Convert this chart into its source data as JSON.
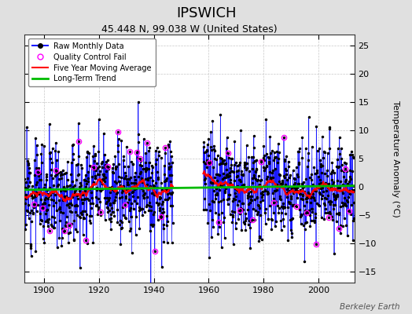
{
  "title": "IPSWICH",
  "subtitle": "45.448 N, 99.038 W (United States)",
  "ylabel": "Temperature Anomaly (°C)",
  "watermark": "Berkeley Earth",
  "xlim": [
    1893,
    2013
  ],
  "ylim": [
    -17,
    27
  ],
  "yticks": [
    -15,
    -10,
    -5,
    0,
    5,
    10,
    15,
    20,
    25
  ],
  "xticks": [
    1900,
    1920,
    1940,
    1960,
    1980,
    2000
  ],
  "bg_color": "#e0e0e0",
  "plot_bg_color": "#ffffff",
  "grid_color": "#c8c8c8",
  "line_color": "#1a1aff",
  "marker_color": "#000000",
  "qc_fail_color": "#ff00ff",
  "moving_avg_color": "#ff0000",
  "trend_color": "#00bb00",
  "trend_slope": 0.006,
  "trend_intercept": -0.2,
  "moving_avg_window": 60,
  "data_std": 4.2,
  "seed": 12,
  "gap_start": 1947,
  "gap_end": 1958,
  "start_year": 1893,
  "end_year": 2012
}
